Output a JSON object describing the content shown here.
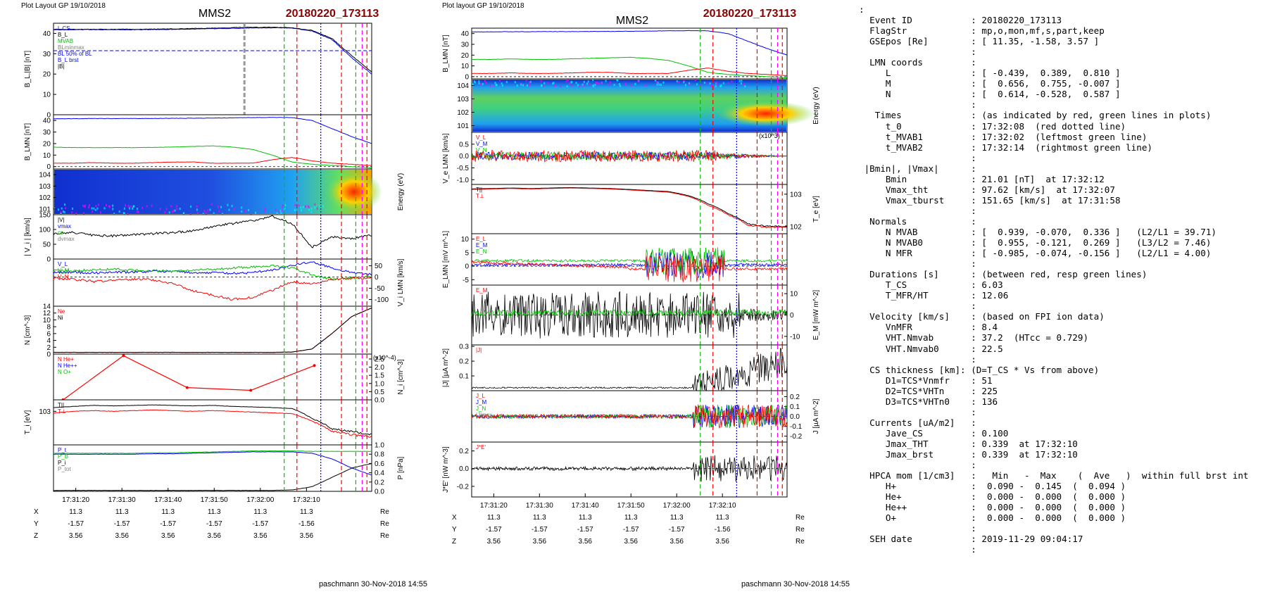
{
  "left": {
    "layout_label": "Plot Layout GP 19/10/2018",
    "spacecraft": "MMS2",
    "event": "20180220_173113",
    "footer": "paschmann 30-Nov-2018 14:55",
    "time_ticks": [
      "17:31:20",
      "17:31:30",
      "17:31:40",
      "17:31:50",
      "17:32:00",
      "17:32:10"
    ],
    "pos_rows": [
      {
        "name": "X",
        "values": [
          "11.3",
          "11.3",
          "11.3",
          "11.3",
          "11.3",
          "11.3"
        ],
        "unit": "Re"
      },
      {
        "name": "Y",
        "values": [
          "-1.57",
          "-1.57",
          "-1.57",
          "-1.57",
          "-1.57",
          "-1.56"
        ],
        "unit": "Re"
      },
      {
        "name": "Z",
        "values": [
          "3.56",
          "3.56",
          "3.56",
          "3.56",
          "3.56",
          "3.56"
        ],
        "unit": "Re"
      }
    ],
    "ylabels": [
      "B_L,|B| [nT]",
      "B_LMN [nT]",
      "",
      "| V_i | [km/s]",
      "",
      "N [cm^-3]",
      "",
      "T_i [eV]",
      ""
    ],
    "right_labels": [
      "",
      "",
      "Energy (eV)",
      "",
      "V_i LMN [km/s]",
      "",
      "N_i [cm^-3]",
      "",
      "P [nPa]"
    ]
  },
  "middle": {
    "layout_label": "Plot layout GP 19/10/2018",
    "spacecraft": "MMS2",
    "event": "20180220_173113",
    "footer": "paschmann 30-Nov-2018 14:55",
    "time_ticks": [
      "17:31:20",
      "17:31:30",
      "17:31:40",
      "17:31:50",
      "17:32:00",
      "17:32:10"
    ],
    "pos_rows": [
      {
        "name": "X",
        "values": [
          "11.3",
          "11.3",
          "11.3",
          "11.3",
          "11.3",
          "11.3"
        ],
        "unit": "Re"
      },
      {
        "name": "Y",
        "values": [
          "-1.57",
          "-1.57",
          "-1.57",
          "-1.57",
          "-1.57",
          "-1.56"
        ],
        "unit": "Re"
      },
      {
        "name": "Z",
        "values": [
          "3.56",
          "3.56",
          "3.56",
          "3.56",
          "3.56",
          "3.56"
        ],
        "unit": "Re"
      }
    ],
    "ylabels": [
      "B_LMN [nT]",
      "",
      "V_e LMN [km/s]",
      "",
      "E_LMN [mV m^-1]",
      "",
      "|J| [µA m^-2]",
      "",
      "J*E' [nW m^-3]"
    ],
    "right_labels": [
      "",
      "Energy (eV)",
      "",
      "T_e [eV]",
      "",
      "E_M [mW m^-2]",
      "",
      "J [µA m^-2]",
      ""
    ]
  },
  "colors": {
    "event_title": "#8b0000",
    "L": "#0000ff",
    "M": "#00c000",
    "N": "#ff0000",
    "other": "#000000"
  },
  "chart_data": [
    {
      "id": "L1",
      "type": "line",
      "title": "",
      "ylim": [
        0,
        45
      ],
      "yticks": [
        "0",
        "10",
        "20",
        "30",
        "40"
      ],
      "legend": [
        "L CS",
        "B_L",
        "MVAB",
        "BLminmax",
        "BL 50% of BL",
        "B_L brst",
        "|B|"
      ],
      "series": [
        {
          "name": "B_L",
          "color": "#0000ff",
          "values": [
            41.8,
            41.8,
            41.9,
            41.8,
            41.8,
            41.9,
            42,
            42.1,
            42.3,
            42.5,
            42.7,
            42.8,
            42.6,
            41.2,
            37,
            28,
            20
          ]
        },
        {
          "name": "|B|",
          "color": "#000000",
          "values": [
            42,
            42,
            42,
            42,
            42,
            42.1,
            42.2,
            42.4,
            42.6,
            42.8,
            43,
            43,
            42.8,
            41.5,
            37.5,
            29,
            21
          ]
        }
      ],
      "hlines": [
        {
          "value": 31.5,
          "color": "#0000ff",
          "dash": true
        }
      ]
    },
    {
      "id": "L2",
      "type": "line",
      "ylim": [
        -2,
        45
      ],
      "yticks": [
        "0",
        "10",
        "20",
        "30",
        "40"
      ],
      "series": [
        {
          "name": "B_L",
          "color": "#0000ff",
          "values": [
            41.5,
            41.6,
            41.7,
            41.7,
            41.8,
            41.8,
            41.9,
            42,
            42.1,
            42.3,
            42.5,
            42.7,
            42.5,
            40,
            33,
            26,
            20
          ]
        },
        {
          "name": "B_M",
          "color": "#00c000",
          "values": [
            17,
            16.5,
            16.5,
            16.5,
            16.5,
            16.7,
            17,
            17.5,
            18,
            17,
            15,
            10,
            4,
            2,
            1,
            0,
            -1
          ]
        },
        {
          "name": "B_N",
          "color": "#ff0000",
          "values": [
            3,
            3,
            3.5,
            3,
            3,
            3.5,
            4,
            4,
            3,
            3,
            3,
            6,
            8,
            5,
            3,
            2,
            1
          ]
        }
      ]
    },
    {
      "id": "L3",
      "type": "heatmap",
      "ylabel": "Energy (eV)",
      "yticks": [
        "10^1",
        "10^2",
        "10^3",
        "10^4"
      ]
    },
    {
      "id": "L4",
      "type": "line",
      "ylim": [
        0,
        150
      ],
      "yticks": [
        "0",
        "50",
        "100",
        "150"
      ],
      "legend": [
        "|V|",
        "vmax",
        "cs",
        "dvmax"
      ],
      "series": [
        {
          "name": "|V_i|",
          "color": "#000000",
          "values": [
            85,
            90,
            80,
            78,
            82,
            86,
            90,
            95,
            110,
            120,
            130,
            145,
            120,
            40,
            75,
            70,
            80
          ]
        }
      ]
    },
    {
      "id": "L5",
      "type": "line",
      "ylim": [
        -130,
        80
      ],
      "yticks": [
        "-100",
        "-50",
        "0",
        "50"
      ],
      "legend": [
        "V_L",
        "V_M",
        "V_N"
      ],
      "series": [
        {
          "name": "V_L",
          "color": "#0000ff",
          "values": [
            20,
            22,
            18,
            20,
            22,
            25,
            24,
            20,
            18,
            16,
            20,
            30,
            50,
            70,
            40,
            20,
            10
          ]
        },
        {
          "name": "V_M",
          "color": "#00c000",
          "values": [
            30,
            28,
            32,
            35,
            30,
            28,
            25,
            30,
            35,
            40,
            45,
            50,
            40,
            10,
            -10,
            -5,
            0
          ]
        },
        {
          "name": "V_N",
          "color": "#ff0000",
          "values": [
            -5,
            -10,
            -20,
            -15,
            -10,
            -12,
            -30,
            -60,
            -80,
            -100,
            -90,
            -60,
            -20,
            -30,
            -10,
            -5,
            -5
          ]
        }
      ]
    },
    {
      "id": "L6",
      "type": "line",
      "ylim": [
        0,
        14
      ],
      "yticks": [
        "0",
        "2",
        "4",
        "6",
        "8",
        "10",
        "12",
        "14"
      ],
      "legend": [
        "Ne",
        "Ni"
      ],
      "series": [
        {
          "name": "Ne",
          "color": "#ff0000",
          "values": [
            0.5,
            0.5,
            0.5,
            0.5,
            0.5,
            0.5,
            0.5,
            0.5,
            0.5,
            0.5,
            0.5,
            0.5,
            0.6,
            1.5,
            6,
            11,
            13.5
          ]
        },
        {
          "name": "Ni",
          "color": "#000000",
          "values": [
            0.5,
            0.5,
            0.5,
            0.5,
            0.5,
            0.5,
            0.5,
            0.5,
            0.5,
            0.5,
            0.5,
            0.5,
            0.6,
            1.5,
            6,
            11,
            13.5
          ]
        }
      ]
    },
    {
      "id": "L7",
      "type": "line",
      "ylim": [
        0,
        2.8
      ],
      "yticks": [
        "0.0",
        "0.5",
        "1.0",
        "1.5",
        "2.0",
        "2.5"
      ],
      "unit_note": "(x10^-4)",
      "legend": [
        "N  He+",
        "N  He++",
        "N  O+"
      ],
      "series": [
        {
          "name": "N He++",
          "color": "#ff0000",
          "x": [
            0.03,
            0.22,
            0.42,
            0.62,
            0.82
          ],
          "values": [
            0.0,
            2.7,
            0.75,
            0.58,
            2.1
          ]
        }
      ]
    },
    {
      "id": "L8",
      "type": "line",
      "ylim": [
        100,
        2200
      ],
      "log": true,
      "yticks": [
        "10^3"
      ],
      "legend": [
        "T||",
        "T⊥"
      ],
      "series": [
        {
          "name": "T_par",
          "color": "#000000",
          "values": [
            1300,
            1400,
            1500,
            1450,
            1500,
            1550,
            1500,
            1450,
            1500,
            1400,
            1350,
            1300,
            1200,
            600,
            300,
            250,
            200
          ]
        },
        {
          "name": "T_perp",
          "color": "#ff0000",
          "values": [
            900,
            1000,
            1050,
            1000,
            1050,
            1100,
            1050,
            1000,
            1050,
            1000,
            950,
            900,
            850,
            500,
            250,
            200,
            180
          ]
        }
      ]
    },
    {
      "id": "L9",
      "type": "line",
      "ylim": [
        0,
        1.0
      ],
      "yticks": [
        "0.0",
        "0.2",
        "0.4",
        "0.6",
        "0.8",
        "1.0"
      ],
      "legend": [
        "P_t",
        "P_B",
        "P_i",
        "P_tot"
      ],
      "series": [
        {
          "name": "P_B",
          "color": "#0000ff",
          "values": [
            0.8,
            0.8,
            0.8,
            0.8,
            0.8,
            0.81,
            0.81,
            0.82,
            0.83,
            0.84,
            0.85,
            0.85,
            0.85,
            0.82,
            0.7,
            0.5,
            0.35
          ]
        },
        {
          "name": "P_tot",
          "color": "#00c000",
          "values": [
            0.82,
            0.82,
            0.82,
            0.82,
            0.82,
            0.83,
            0.83,
            0.84,
            0.85,
            0.86,
            0.87,
            0.87,
            0.87,
            0.86,
            0.86,
            0.86,
            0.86
          ]
        },
        {
          "name": "P_i",
          "color": "#000000",
          "values": [
            0.02,
            0.02,
            0.02,
            0.02,
            0.02,
            0.02,
            0.02,
            0.02,
            0.02,
            0.02,
            0.02,
            0.02,
            0.03,
            0.1,
            0.3,
            0.5,
            0.6
          ]
        }
      ]
    },
    {
      "id": "M1",
      "type": "line",
      "ylim": [
        -2,
        45
      ],
      "yticks": [
        "0",
        "10",
        "20",
        "30",
        "40"
      ],
      "series": [
        {
          "name": "B_L",
          "color": "#0000ff",
          "values": [
            41.5,
            41.6,
            41.7,
            41.7,
            41.8,
            41.8,
            41.9,
            42,
            42.1,
            42.3,
            42.5,
            42.7,
            42.5,
            40,
            33,
            26,
            20
          ]
        },
        {
          "name": "B_M",
          "color": "#00c000",
          "values": [
            16,
            16,
            16.5,
            16,
            16,
            16.5,
            17,
            17.5,
            18,
            17,
            15,
            10,
            4,
            2,
            1,
            0,
            -1
          ]
        },
        {
          "name": "B_N",
          "color": "#ff0000",
          "values": [
            3,
            3,
            3.5,
            3,
            3,
            3.5,
            4,
            4,
            3,
            3,
            3,
            6,
            8,
            5,
            3,
            2,
            1
          ]
        }
      ]
    },
    {
      "id": "M2",
      "type": "heatmap",
      "ylabel": "Energy (eV)",
      "yticks": [
        "10^1",
        "10^2",
        "10^3",
        "10^4"
      ]
    },
    {
      "id": "M3",
      "type": "line",
      "ylim": [
        -1.2,
        1.0
      ],
      "yticks": [
        "-1.0",
        "-0.5",
        "0.0",
        "0.5"
      ],
      "unit_note": "(x10^3)",
      "legend": [
        "V_L",
        "V_M",
        "V_N"
      ]
    },
    {
      "id": "M4",
      "type": "line",
      "ylim": [
        60,
        2000
      ],
      "log": true,
      "yticks": [
        "10^2",
        "10^3"
      ],
      "legend": [
        "T||",
        "T⊥"
      ],
      "series": [
        {
          "name": "T_par",
          "color": "#000000",
          "values": [
            1450,
            1500,
            1550,
            1500,
            1550,
            1600,
            1550,
            1500,
            1400,
            1300,
            1200,
            900,
            500,
            250,
            120,
            100,
            100
          ]
        },
        {
          "name": "T_perp",
          "color": "#ff0000",
          "values": [
            1400,
            1450,
            1500,
            1450,
            1500,
            1550,
            1500,
            1450,
            1350,
            1250,
            1150,
            850,
            450,
            230,
            110,
            95,
            95
          ]
        }
      ]
    },
    {
      "id": "M5",
      "type": "line",
      "ylim": [
        -7,
        12
      ],
      "yticks": [
        "-5",
        "0",
        "5",
        "10"
      ],
      "legend": [
        "E_L",
        "E_M",
        "E_N"
      ]
    },
    {
      "id": "M6",
      "type": "line",
      "ylim": [
        -14,
        14
      ],
      "yticks": [
        "-10",
        "0",
        "10"
      ],
      "legend": [
        "E_M"
      ]
    },
    {
      "id": "M7",
      "type": "line",
      "ylim": [
        0,
        0.31
      ],
      "yticks": [
        "0.1",
        "0.2",
        "0.3"
      ],
      "legend": [
        "|J|"
      ]
    },
    {
      "id": "M8",
      "type": "line",
      "ylim": [
        -0.26,
        0.26
      ],
      "yticks": [
        "-0.2",
        "-0.1",
        "0.0",
        "0.1",
        "0.2"
      ],
      "legend": [
        "J_L",
        "J_M",
        "J_N",
        "|J|max"
      ]
    },
    {
      "id": "M9",
      "type": "line",
      "ylim": [
        -0.32,
        0.3
      ],
      "yticks": [
        "-0.2",
        "0.0",
        "0.2"
      ],
      "legend": [
        "J*E'"
      ]
    }
  ],
  "summary": {
    "lines": [
      ":",
      "  Event ID           : 20180220_173113",
      "  FlagStr            : mp,o,mon,mf,s,part,keep",
      "  GSEpos [Re]        : [ 11.35, -1.58, 3.57 ]",
      "                     :",
      "  LMN coords         :",
      "     L               : [ -0.439,  0.389,  0.810 ]",
      "     M               : [  0.656,  0.755, -0.007 ]",
      "     N               : [  0.614, -0.528,  0.587 ]",
      "                     :",
      "   Times             : (as indicated by red, green lines in plots)",
      "     t_0             : 17:32:08  (red dotted line)",
      "     t_MVAB1         : 17:32:02  (leftmost green line)",
      "     t_MVAB2         : 17:32:14  (rightmost green line)",
      "                     :",
      " |Bmin|, |Vmax|      :",
      "     Bmin            : 21.01 [nT]  at 17:32:12",
      "     Vmax_tht        : 97.62 [km/s]  at 17:32:07",
      "     Vmax_tburst     : 151.65 [km/s]  at 17:31:58",
      "                     :",
      "  Normals            :",
      "     N MVAB          : [  0.939, -0.070,  0.336 ]   (L2/L1 = 39.71)",
      "     N MVAB0         : [  0.955, -0.121,  0.269 ]   (L3/L2 = 7.46)",
      "     N MFR           : [ -0.985, -0.074, -0.156 ]   (L2/L1 = 4.00)",
      "                     :",
      "  Durations [s]      : (between red, resp green lines)",
      "     T_CS            : 6.03",
      "     T_MFR/HT        : 12.06",
      "                     :",
      "  Velocity [km/s]    : (based on FPI ion data)",
      "     VnMFR           : 8.4",
      "     VHT.Nmvab       : 37.2  (HTcc = 0.729)",
      "     VHT.Nmvab0      : 22.5",
      "                     :",
      "  CS thickness [km]: (D=T_CS * Vs from above)",
      "     D1=TCS*Vnmfr    : 51",
      "     D2=TCS*VHTn     : 225",
      "     D3=TCS*VHTn0    : 136",
      "                     :",
      "  Currents [uA/m2]   :",
      "     Jave_CS         : 0.100",
      "     Jmax_THT        : 0.339  at 17:32:10",
      "     Jmax_brst       : 0.339  at 17:32:10",
      "                     :",
      "  HPCA mom [1/cm3]   :   Min   -  Max    (  Ave   )  within full brst int",
      "     H+              :  0.090 -  0.145  (  0.094 )",
      "     He+             :  0.000 -  0.000  (  0.000 )",
      "     He++            :  0.000 -  0.000  (  0.000 )",
      "     O+              :  0.000 -  0.000  (  0.000 )",
      "                     :",
      "  SEH date           : 2019-11-29 09:04:17",
      "                     :"
    ]
  }
}
